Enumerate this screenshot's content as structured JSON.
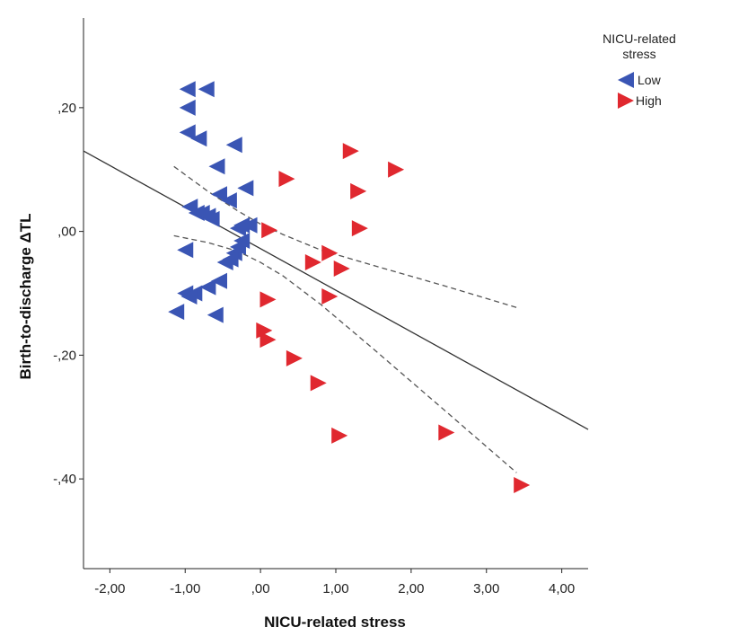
{
  "chart_data": {
    "type": "scatter",
    "title": "",
    "xlabel": "NICU-related stress",
    "ylabel": "Birth-to-discharge ΔTL",
    "xlim": [
      -2.35,
      4.35
    ],
    "ylim": [
      -0.545,
      0.345
    ],
    "x_ticks": [
      -2,
      -1,
      0,
      1,
      2,
      3,
      4
    ],
    "x_tick_labels": [
      "-2,00",
      "-1,00",
      ",00",
      "1,00",
      "2,00",
      "3,00",
      "4,00"
    ],
    "y_ticks": [
      -0.4,
      -0.2,
      0.0,
      0.2
    ],
    "y_tick_labels": [
      "-,40",
      "-,20",
      ",00",
      ",20"
    ],
    "grid": false,
    "legend": {
      "title": "NICU-related stress",
      "title_lines": [
        "NICU-related",
        "stress"
      ],
      "placement": "top-right"
    },
    "series": [
      {
        "name": "Low",
        "marker": "triangle-left",
        "color": "#3a55b4",
        "points": [
          [
            -0.97,
            0.23
          ],
          [
            -0.72,
            0.23
          ],
          [
            -0.97,
            0.2
          ],
          [
            -0.97,
            0.16
          ],
          [
            -0.82,
            0.15
          ],
          [
            -0.35,
            0.14
          ],
          [
            -0.58,
            0.105
          ],
          [
            -0.2,
            0.07
          ],
          [
            -0.55,
            0.06
          ],
          [
            -0.42,
            0.05
          ],
          [
            -0.94,
            0.04
          ],
          [
            -0.85,
            0.03
          ],
          [
            -0.78,
            0.03
          ],
          [
            -0.7,
            0.025
          ],
          [
            -0.65,
            0.02
          ],
          [
            -0.25,
            0.01
          ],
          [
            -0.15,
            0.01
          ],
          [
            -0.3,
            0.005
          ],
          [
            -0.25,
            -0.015
          ],
          [
            -0.3,
            -0.025
          ],
          [
            -1.0,
            -0.03
          ],
          [
            -0.35,
            -0.035
          ],
          [
            -0.4,
            -0.045
          ],
          [
            -0.47,
            -0.05
          ],
          [
            -0.55,
            -0.08
          ],
          [
            -0.7,
            -0.09
          ],
          [
            -1.0,
            -0.1
          ],
          [
            -0.88,
            -0.1
          ],
          [
            -0.95,
            -0.105
          ],
          [
            -1.12,
            -0.13
          ],
          [
            -0.6,
            -0.135
          ]
        ]
      },
      {
        "name": "High",
        "marker": "triangle-right",
        "color": "#e0282f",
        "points": [
          [
            1.2,
            0.13
          ],
          [
            1.8,
            0.1
          ],
          [
            0.35,
            0.085
          ],
          [
            1.3,
            0.065
          ],
          [
            1.32,
            0.005
          ],
          [
            0.12,
            0.002
          ],
          [
            0.92,
            -0.035
          ],
          [
            0.7,
            -0.05
          ],
          [
            1.08,
            -0.06
          ],
          [
            0.92,
            -0.105
          ],
          [
            0.1,
            -0.11
          ],
          [
            0.05,
            -0.16
          ],
          [
            0.1,
            -0.175
          ],
          [
            0.45,
            -0.205
          ],
          [
            0.77,
            -0.245
          ],
          [
            1.05,
            -0.33
          ],
          [
            2.47,
            -0.325
          ],
          [
            3.47,
            -0.41
          ]
        ]
      }
    ],
    "fit_line": {
      "type": "linear",
      "color": "#333333",
      "points": [
        [
          -2.35,
          0.13
        ],
        [
          4.35,
          -0.32
        ]
      ]
    },
    "confidence_band": {
      "style": "dashed",
      "color": "#555555",
      "upper": [
        [
          -1.15,
          0.105
        ],
        [
          -0.7,
          0.065
        ],
        [
          -0.3,
          0.033
        ],
        [
          0.0,
          0.012
        ],
        [
          0.3,
          -0.005
        ],
        [
          0.8,
          -0.03
        ],
        [
          1.5,
          -0.055
        ],
        [
          2.5,
          -0.09
        ],
        [
          3.4,
          -0.123
        ]
      ],
      "lower": [
        [
          -1.15,
          -0.007
        ],
        [
          -0.7,
          -0.018
        ],
        [
          -0.3,
          -0.032
        ],
        [
          0.0,
          -0.05
        ],
        [
          0.3,
          -0.072
        ],
        [
          0.8,
          -0.118
        ],
        [
          1.5,
          -0.19
        ],
        [
          2.5,
          -0.295
        ],
        [
          3.4,
          -0.39
        ]
      ]
    }
  }
}
